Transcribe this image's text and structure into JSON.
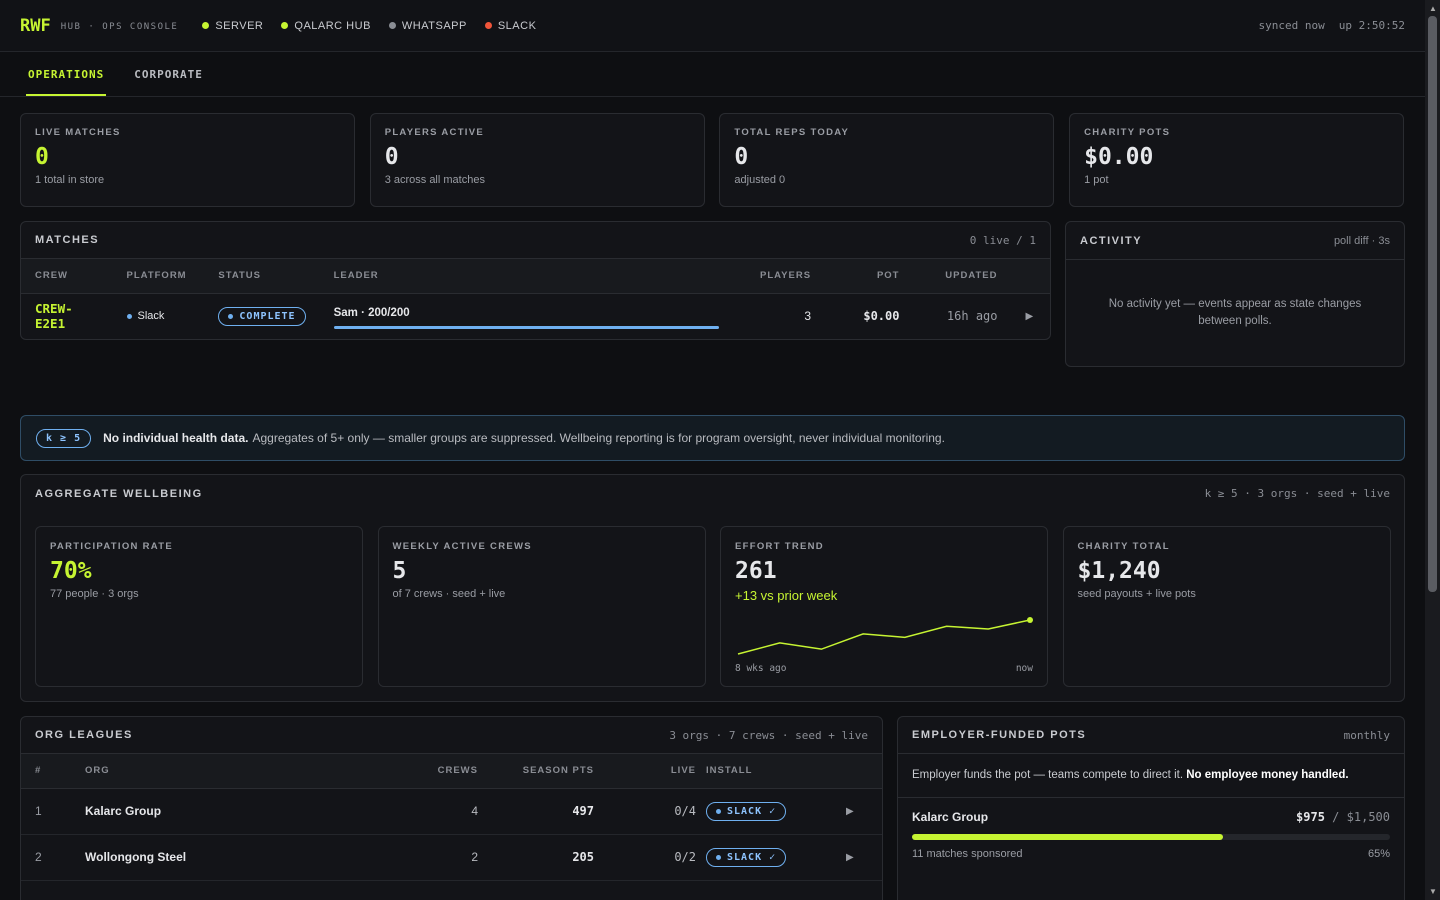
{
  "header": {
    "brand": "RWF",
    "subtitle": "HUB · OPS CONSOLE",
    "status": [
      "SERVER",
      "QALARC HUB",
      "WHATSAPP",
      "SLACK"
    ],
    "synced": "synced now",
    "uptime": "up 2:50:52"
  },
  "tabs": [
    "OPERATIONS",
    "CORPORATE"
  ],
  "kpis": [
    {
      "label": "LIVE MATCHES",
      "value": "0",
      "sub": "1 total in store"
    },
    {
      "label": "PLAYERS ACTIVE",
      "value": "0",
      "sub": "3 across all matches"
    },
    {
      "label": "TOTAL REPS TODAY",
      "value": "0",
      "sub": "adjusted 0"
    },
    {
      "label": "CHARITY POTS",
      "value": "$0.00",
      "sub": "1 pot"
    }
  ],
  "matches": {
    "title": "MATCHES",
    "meta": "0 live / 1",
    "columns": [
      "CREW",
      "PLATFORM",
      "STATUS",
      "LEADER",
      "PLAYERS",
      "POT",
      "UPDATED"
    ],
    "rows": [
      {
        "crew": "CREW-E2E1",
        "platform": "Slack",
        "status": "COMPLETE",
        "leader": "Sam · 200/200",
        "players": "3",
        "pot": "$0.00",
        "updated": "16h ago"
      }
    ]
  },
  "activity": {
    "title": "ACTIVITY",
    "meta": "poll diff · 3s",
    "empty": "No activity yet — events appear as state changes between polls."
  },
  "notice": {
    "badge": "k ≥ 5",
    "bold": "No individual health data.",
    "text": "Aggregates of 5+ only — smaller groups are suppressed. Wellbeing reporting is for program oversight, never individual monitoring."
  },
  "wellbeing": {
    "title": "AGGREGATE WELLBEING",
    "meta": "k ≥ 5 · 3 orgs · seed + live",
    "cards": [
      {
        "label": "PARTICIPATION RATE",
        "value": "70%",
        "sub": "77 people · 3 orgs"
      },
      {
        "label": "WEEKLY ACTIVE CREWS",
        "value": "5",
        "sub": "of 7 crews · seed + live"
      },
      {
        "label": "EFFORT TREND",
        "value": "261",
        "sub": "+13 vs prior week"
      },
      {
        "label": "CHARITY TOTAL",
        "value": "$1,240",
        "sub": "seed payouts + live pots"
      }
    ],
    "trend": {
      "values": [
        212,
        228,
        219,
        241,
        236,
        252,
        248,
        261
      ],
      "start_label": "8 wks ago",
      "end_label": "now",
      "color": "#c6f432"
    }
  },
  "leagues": {
    "title": "ORG LEAGUES",
    "meta": "3 orgs · 7 crews · seed + live",
    "columns": [
      "#",
      "ORG",
      "CREWS",
      "SEASON PTS",
      "LIVE",
      "INSTALL"
    ],
    "rows": [
      [
        "1",
        "Kalarc Group",
        "4",
        "497",
        "0/4",
        "SLACK ✓"
      ],
      [
        "2",
        "Wollongong Steel",
        "2",
        "205",
        "0/2",
        "SLACK ✓"
      ]
    ]
  },
  "pots": {
    "title": "EMPLOYER-FUNDED POTS",
    "meta": "monthly",
    "intro": "Employer funds the pot — teams compete to direct it.",
    "intro_bold": "No employee money handled.",
    "items": [
      {
        "name": "Kalarc Group",
        "amount": "$975",
        "target": "$1,500",
        "sub": "11 matches sponsored",
        "percent": 65,
        "percent_label": "65%"
      }
    ]
  }
}
